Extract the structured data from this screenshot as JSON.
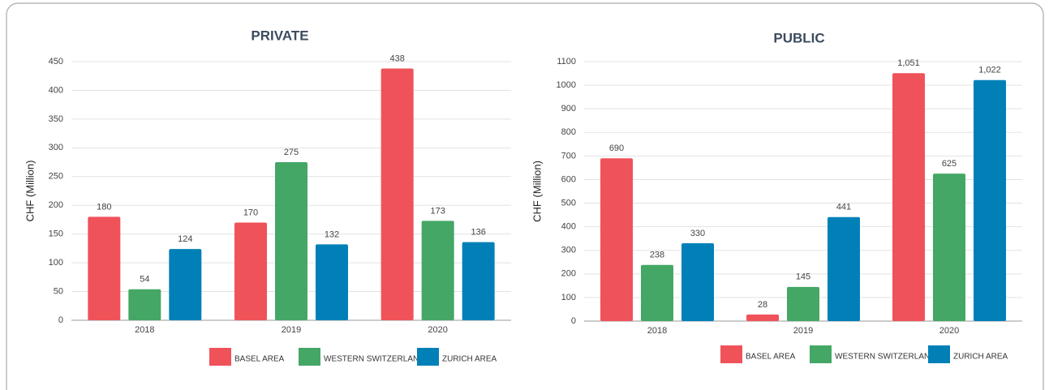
{
  "chart_data": [
    {
      "type": "bar",
      "title": "PRIVATE",
      "y_label": "CHF (Million)",
      "categories": [
        "2018",
        "2019",
        "2020"
      ],
      "series": [
        {
          "name": "BASEL AREA",
          "color": "#f0525a",
          "values": [
            180,
            170,
            438
          ]
        },
        {
          "name": "WESTERN SWITZERLAND",
          "color": "#44a766",
          "values": [
            54,
            275,
            173
          ]
        },
        {
          "name": "ZURICH AREA",
          "color": "#0180b8",
          "values": [
            124,
            132,
            136
          ]
        }
      ],
      "ylim": [
        0,
        450
      ],
      "yticks": [
        0,
        50,
        100,
        150,
        200,
        250,
        300,
        350,
        400,
        450
      ],
      "grid": true,
      "legend": "bottom"
    },
    {
      "type": "bar",
      "title": "PUBLIC",
      "y_label": "CHF (Million)",
      "categories": [
        "2018",
        "2019",
        "2020"
      ],
      "series": [
        {
          "name": "BASEL AREA",
          "color": "#f0525a",
          "values": [
            690,
            28,
            1051
          ],
          "value_labels": [
            "690",
            "28",
            "1,051"
          ]
        },
        {
          "name": "WESTERN SWITZERLAND",
          "color": "#44a766",
          "values": [
            238,
            145,
            625
          ]
        },
        {
          "name": "ZURICH AREA",
          "color": "#0180b8",
          "values": [
            330,
            441,
            1022
          ],
          "value_labels": [
            "330",
            "441",
            "1,022"
          ]
        }
      ],
      "ylim": [
        0,
        1100
      ],
      "yticks": [
        0,
        100,
        200,
        300,
        400,
        500,
        600,
        700,
        800,
        900,
        1000,
        1100
      ],
      "grid": true,
      "legend": "bottom"
    }
  ]
}
